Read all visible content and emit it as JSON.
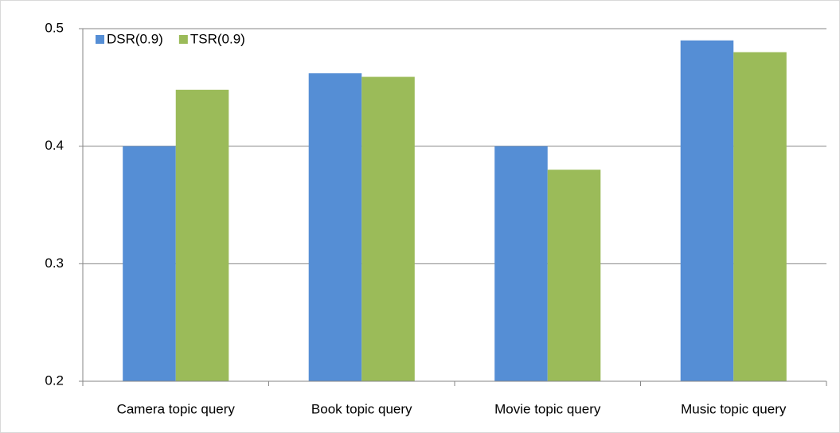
{
  "chart_data": {
    "type": "bar",
    "categories": [
      "Camera topic query",
      "Book topic query",
      "Movie topic query",
      "Music topic query"
    ],
    "series": [
      {
        "name": "DSR(0.9)",
        "color": "#558ed5",
        "values": [
          0.4,
          0.462,
          0.4,
          0.49
        ]
      },
      {
        "name": "TSR(0.9)",
        "color": "#9bbb59",
        "values": [
          0.448,
          0.459,
          0.38,
          0.48
        ]
      }
    ],
    "ylim": [
      0.2,
      0.5
    ],
    "yticks": [
      0.2,
      0.3,
      0.4,
      0.5
    ],
    "grid": true,
    "legend": "top-left"
  }
}
